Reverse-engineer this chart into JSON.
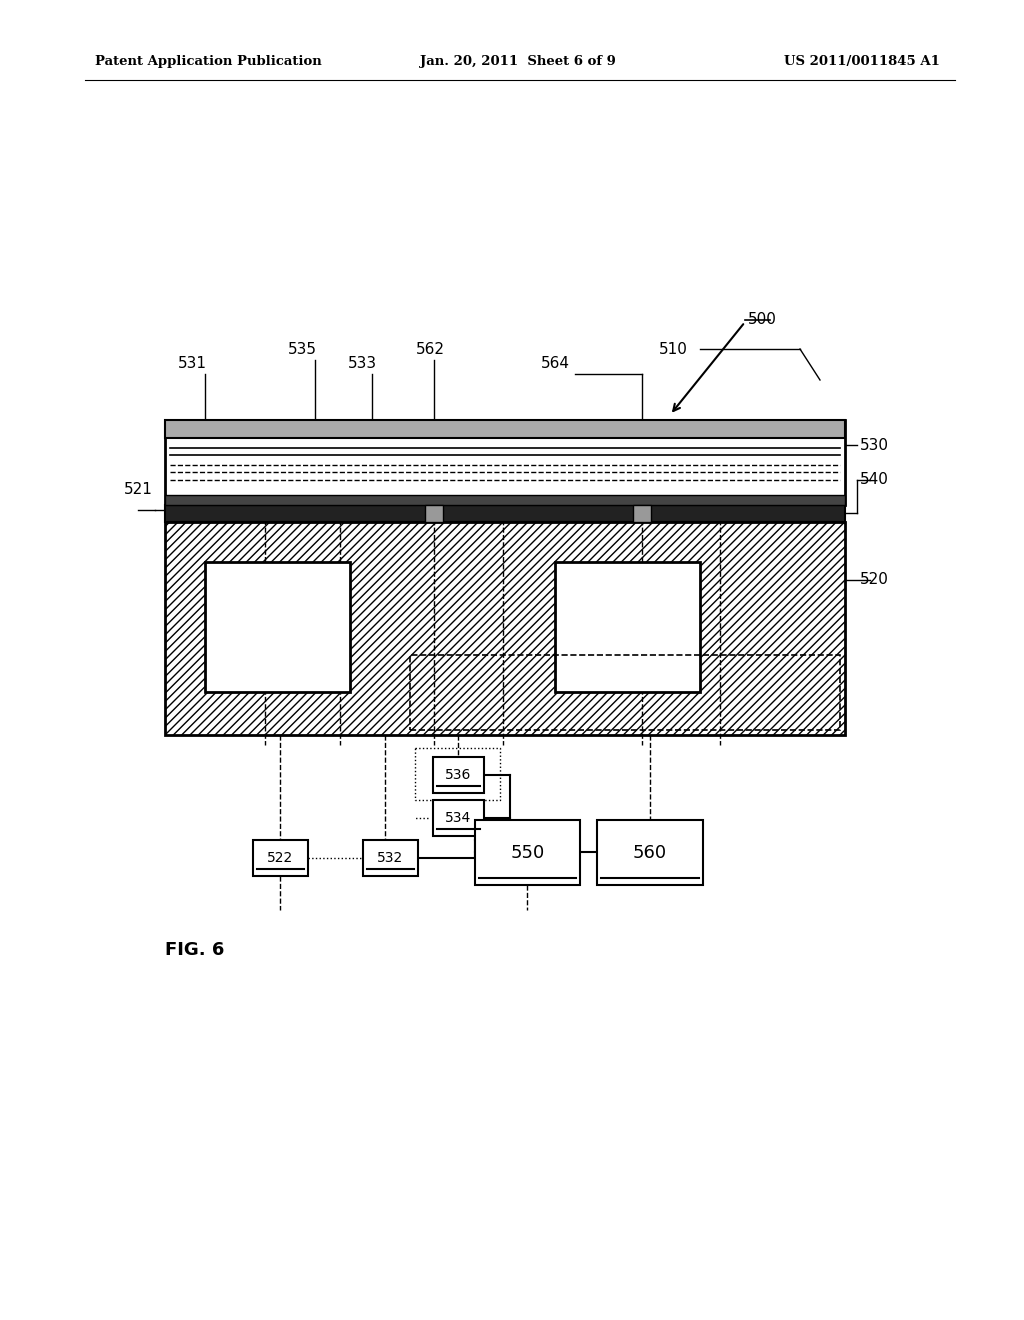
{
  "bg_color": "#ffffff",
  "header_left": "Patent Application Publication",
  "header_center": "Jan. 20, 2011  Sheet 6 of 9",
  "header_right": "US 2011/0011845 A1",
  "fig_label": "FIG. 6",
  "label_500": "500",
  "label_510": "510",
  "label_520": "520",
  "label_521": "521",
  "label_522": "522",
  "label_530": "530",
  "label_531": "531",
  "label_532": "532",
  "label_533": "533",
  "label_534": "534",
  "label_535": "535",
  "label_536": "536",
  "label_540": "540",
  "label_550": "550",
  "label_560": "560",
  "label_562": "562",
  "label_564": "564"
}
